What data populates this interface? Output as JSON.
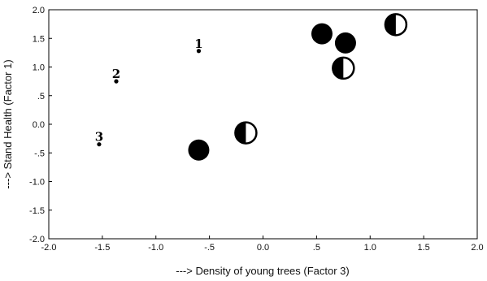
{
  "chart_data": {
    "type": "scatter",
    "title": "",
    "xlabel": "---> Density of young trees (Factor 3)",
    "ylabel": "---> Stand Health (Factor 1)",
    "xlim": [
      -2.0,
      2.0
    ],
    "ylim": [
      -2.0,
      2.0
    ],
    "x_ticks": [
      -2.0,
      -1.5,
      -1.0,
      -0.5,
      0.0,
      0.5,
      1.0,
      1.5,
      2.0
    ],
    "x_tick_labels": [
      "-2.0",
      "-1.5",
      "-1.0",
      "-.5",
      "0.0",
      ".5",
      "1.0",
      "1.5",
      "2.0"
    ],
    "y_ticks": [
      -2.0,
      -1.5,
      -1.0,
      -0.5,
      0.0,
      0.5,
      1.0,
      1.5,
      2.0
    ],
    "y_tick_labels": [
      "-2.0",
      "-1.5",
      "-1.0",
      "-.5",
      "0.0",
      ".5",
      "1.0",
      "1.5",
      "2.0"
    ],
    "grid": false,
    "legend": "none",
    "labeled_points": [
      {
        "label": "1",
        "x": -0.6,
        "y": 1.28
      },
      {
        "label": "2",
        "x": -1.37,
        "y": 0.75
      },
      {
        "label": "3",
        "x": -1.53,
        "y": -0.35
      }
    ],
    "filled_points": [
      {
        "x": 0.55,
        "y": 1.58
      },
      {
        "x": 0.77,
        "y": 1.42
      },
      {
        "x": -0.6,
        "y": -0.45
      }
    ],
    "half_filled_points": [
      {
        "x": 1.24,
        "y": 1.74
      },
      {
        "x": 0.75,
        "y": 0.98
      },
      {
        "x": -0.16,
        "y": -0.15
      }
    ],
    "colors": {
      "marker": "#000000",
      "half_fill": "#ffffff",
      "axis": "#000000"
    }
  }
}
